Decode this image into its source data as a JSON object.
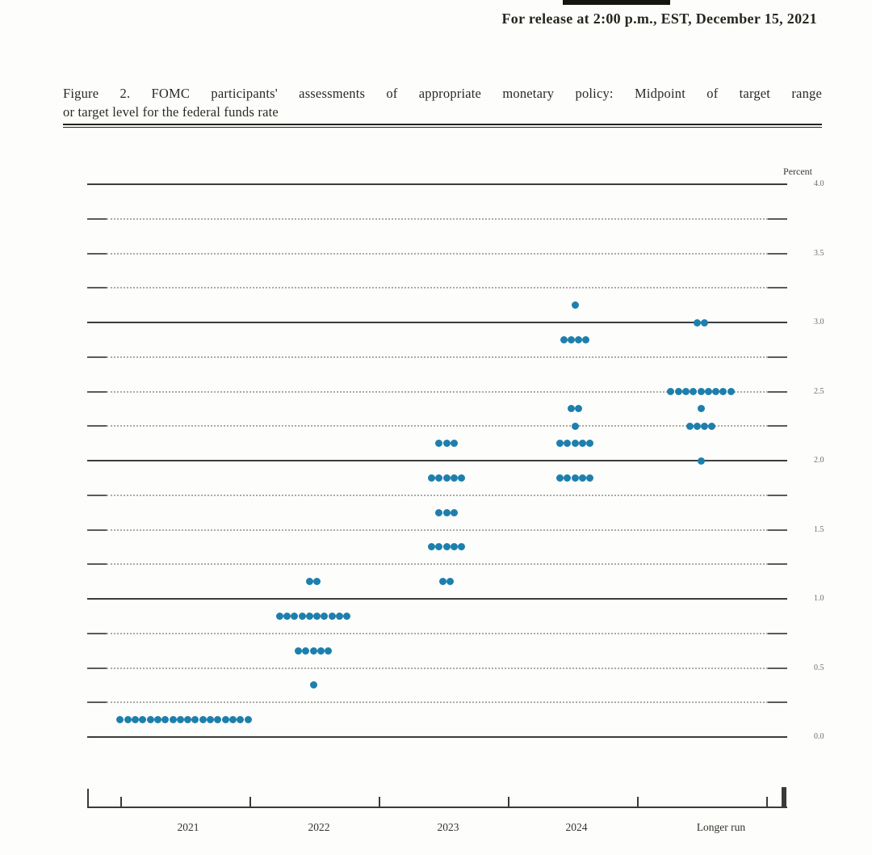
{
  "page": {
    "release_line": "For release at 2:00 p.m., EST, December 15, 2021"
  },
  "figure": {
    "title_line1": "Figure 2.  FOMC participants' assessments of appropriate monetary policy:  Midpoint of target range",
    "title_line2": "or target level for the federal funds rate"
  },
  "chart_data": {
    "type": "scatter",
    "subtype": "fomc-dot-plot",
    "title": "Figure 2. FOMC participants' assessments of appropriate monetary policy: Midpoint of target range or target level for the federal funds rate",
    "unit_label": "Percent",
    "xlabel": "",
    "ylabel": "Percent",
    "ylim": [
      0.0,
      4.0
    ],
    "gridline_step": 0.25,
    "grid": true,
    "legend_position": "none",
    "solid_gridlines_at": [
      0.0,
      1.0,
      2.0,
      3.0,
      4.0
    ],
    "y_tick_labels": [
      "4.0",
      "3.5",
      "3.0",
      "2.5",
      "2.0",
      "1.5",
      "1.0",
      "0.5",
      "0.0"
    ],
    "categories": [
      "2021",
      "2022",
      "2023",
      "2024",
      "Longer run"
    ],
    "series": [
      {
        "category": "2021",
        "dots": [
          {
            "rate": 0.125,
            "count": 18
          }
        ]
      },
      {
        "category": "2022",
        "dots": [
          {
            "rate": 1.125,
            "count": 2
          },
          {
            "rate": 0.875,
            "count": 10
          },
          {
            "rate": 0.625,
            "count": 5
          },
          {
            "rate": 0.375,
            "count": 1
          }
        ]
      },
      {
        "category": "2023",
        "dots": [
          {
            "rate": 2.125,
            "count": 3
          },
          {
            "rate": 1.875,
            "count": 5
          },
          {
            "rate": 1.625,
            "count": 3
          },
          {
            "rate": 1.375,
            "count": 5
          },
          {
            "rate": 1.125,
            "count": 2
          }
        ]
      },
      {
        "category": "2024",
        "dots": [
          {
            "rate": 3.125,
            "count": 1
          },
          {
            "rate": 2.875,
            "count": 4
          },
          {
            "rate": 2.375,
            "count": 2
          },
          {
            "rate": 2.25,
            "count": 1
          },
          {
            "rate": 2.125,
            "count": 5
          },
          {
            "rate": 1.875,
            "count": 5
          }
        ]
      },
      {
        "category": "Longer run",
        "dots": [
          {
            "rate": 3.0,
            "count": 2
          },
          {
            "rate": 2.5,
            "count": 9
          },
          {
            "rate": 2.375,
            "count": 1
          },
          {
            "rate": 2.25,
            "count": 4
          },
          {
            "rate": 2.0,
            "count": 1
          }
        ]
      }
    ],
    "dot_color": "#1d7fad"
  }
}
